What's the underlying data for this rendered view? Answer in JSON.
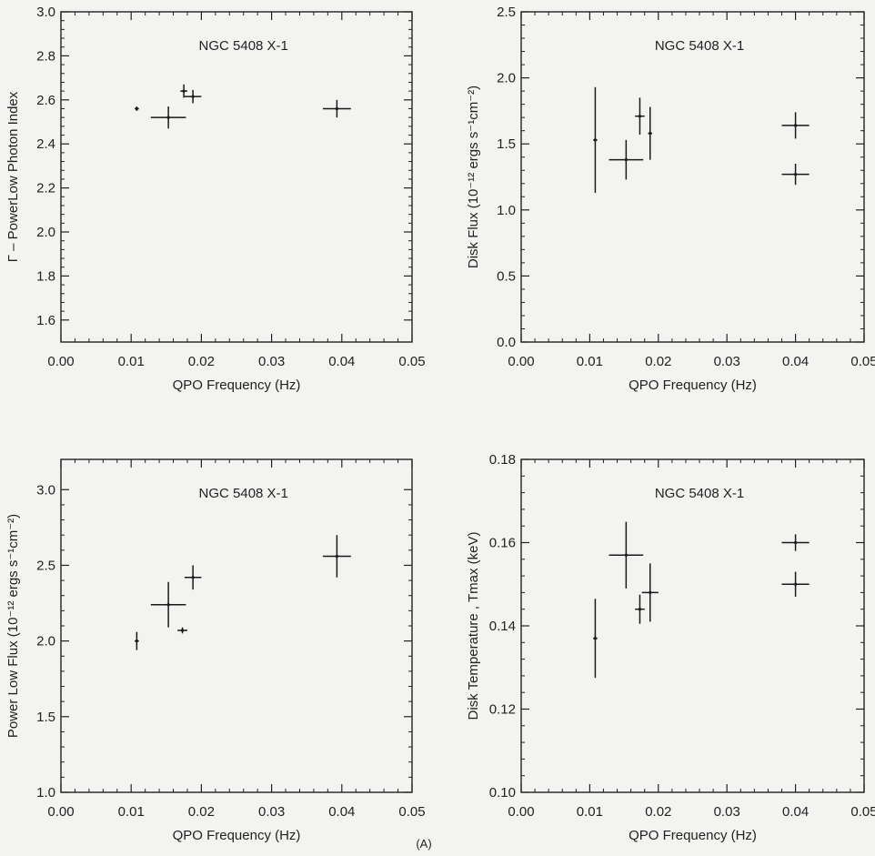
{
  "caption": "(A)",
  "chart_data": [
    {
      "type": "scatter",
      "title": "NGC 5408 X-1",
      "xlabel": "QPO Frequency (Hz)",
      "ylabel": "Γ – PowerLow Photon Index",
      "xlim": [
        0.0,
        0.05
      ],
      "ylim": [
        1.5,
        3.0
      ],
      "xticks": [
        "0.00",
        "0.01",
        "0.02",
        "0.03",
        "0.04",
        "0.05"
      ],
      "yticks": [
        "1.6",
        "1.8",
        "2.0",
        "2.2",
        "2.4",
        "2.6",
        "2.8",
        "3.0"
      ],
      "points": [
        {
          "x": 0.0108,
          "y": 2.56,
          "xerr": 0.0003,
          "yerr": 0.01
        },
        {
          "x": 0.0153,
          "y": 2.52,
          "xerr": 0.0025,
          "yerr": 0.05
        },
        {
          "x": 0.0175,
          "y": 2.64,
          "xerr": 0.0005,
          "yerr": 0.03
        },
        {
          "x": 0.0188,
          "y": 2.615,
          "xerr": 0.0012,
          "yerr": 0.03
        },
        {
          "x": 0.0393,
          "y": 2.56,
          "xerr": 0.002,
          "yerr": 0.04
        }
      ]
    },
    {
      "type": "scatter",
      "title": "NGC 5408 X-1",
      "xlabel": "QPO Frequency (Hz)",
      "ylabel": "Disk Flux (10⁻¹² ergs s⁻¹cm⁻²)",
      "xlim": [
        0.0,
        0.05
      ],
      "ylim": [
        0.0,
        2.5
      ],
      "xticks": [
        "0.00",
        "0.01",
        "0.02",
        "0.03",
        "0.04",
        "0.05"
      ],
      "yticks": [
        "0.0",
        "0.5",
        "1.0",
        "1.5",
        "2.0",
        "2.5"
      ],
      "points": [
        {
          "x": 0.0108,
          "y": 1.53,
          "xerr": 0.0003,
          "yerr": 0.4
        },
        {
          "x": 0.0153,
          "y": 1.38,
          "xerr": 0.0025,
          "yerr": 0.15
        },
        {
          "x": 0.0173,
          "y": 1.71,
          "xerr": 0.0007,
          "yerr": 0.14
        },
        {
          "x": 0.0188,
          "y": 1.58,
          "xerr": 0.0003,
          "yerr": 0.2
        },
        {
          "x": 0.04,
          "y": 1.64,
          "xerr": 0.002,
          "yerr": 0.1
        },
        {
          "x": 0.04,
          "y": 1.27,
          "xerr": 0.002,
          "yerr": 0.08
        }
      ]
    },
    {
      "type": "scatter",
      "title": "NGC 5408 X-1",
      "xlabel": "QPO Frequency (Hz)",
      "ylabel": "Power Low Flux (10⁻¹² ergs s⁻¹cm⁻²)",
      "xlim": [
        0.0,
        0.05
      ],
      "ylim": [
        1.0,
        3.2
      ],
      "xticks": [
        "0.00",
        "0.01",
        "0.02",
        "0.03",
        "0.04",
        "0.05"
      ],
      "yticks": [
        "1.0",
        "1.5",
        "2.0",
        "2.5",
        "3.0"
      ],
      "points": [
        {
          "x": 0.0108,
          "y": 2.0,
          "xerr": 0.0003,
          "yerr": 0.06
        },
        {
          "x": 0.0153,
          "y": 2.24,
          "xerr": 0.0025,
          "yerr": 0.15
        },
        {
          "x": 0.0173,
          "y": 2.07,
          "xerr": 0.0007,
          "yerr": 0.02
        },
        {
          "x": 0.0188,
          "y": 2.42,
          "xerr": 0.0012,
          "yerr": 0.08
        },
        {
          "x": 0.0393,
          "y": 2.56,
          "xerr": 0.002,
          "yerr": 0.14
        }
      ]
    },
    {
      "type": "scatter",
      "title": "NGC 5408 X-1",
      "xlabel": "QPO Frequency (Hz)",
      "ylabel": "Disk Temperature , Tmax (keV)",
      "xlim": [
        0.0,
        0.05
      ],
      "ylim": [
        0.1,
        0.18
      ],
      "xticks": [
        "0.00",
        "0.01",
        "0.02",
        "0.03",
        "0.04",
        "0.05"
      ],
      "yticks": [
        "0.10",
        "0.12",
        "0.14",
        "0.16",
        "0.18"
      ],
      "points": [
        {
          "x": 0.0108,
          "y": 0.137,
          "xerr": 0.0003,
          "yerr": 0.0095
        },
        {
          "x": 0.0153,
          "y": 0.157,
          "xerr": 0.0025,
          "yerr": 0.008
        },
        {
          "x": 0.0173,
          "y": 0.144,
          "xerr": 0.0007,
          "yerr": 0.0035
        },
        {
          "x": 0.0188,
          "y": 0.148,
          "xerr": 0.0012,
          "yerr": 0.007
        },
        {
          "x": 0.04,
          "y": 0.16,
          "xerr": 0.002,
          "yerr": 0.002
        },
        {
          "x": 0.04,
          "y": 0.15,
          "xerr": 0.002,
          "yerr": 0.003
        }
      ]
    }
  ]
}
